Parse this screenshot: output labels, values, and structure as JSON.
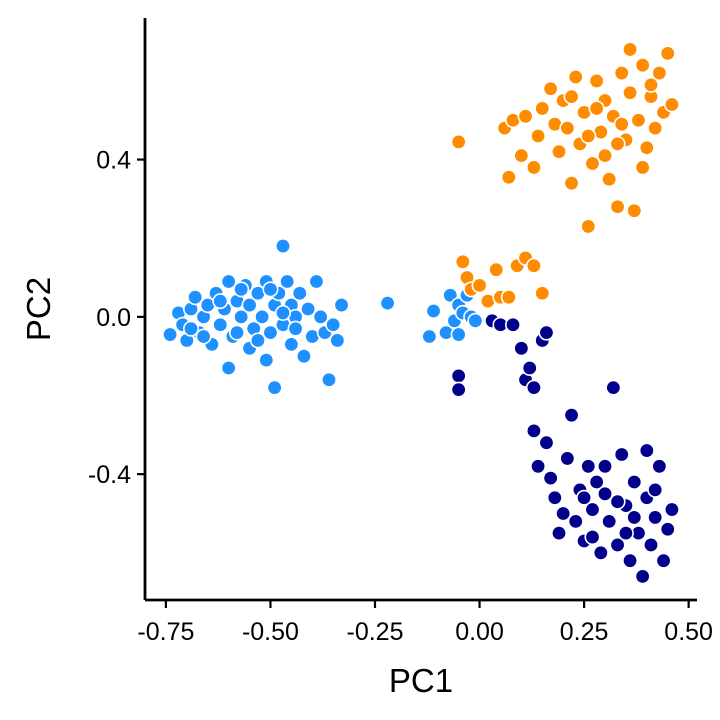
{
  "chart_data": {
    "type": "scatter",
    "title": "",
    "xlabel": "PC1",
    "ylabel": "PC2",
    "xlim": [
      -0.8,
      0.52
    ],
    "ylim": [
      -0.72,
      0.76
    ],
    "xticks": [
      -0.75,
      -0.5,
      -0.25,
      0.0,
      0.25,
      0.5
    ],
    "xtick_labels": [
      "-0.75",
      "-0.50",
      "-0.25",
      "0.00",
      "0.25",
      "0.50"
    ],
    "yticks": [
      -0.4,
      0.0,
      0.4
    ],
    "ytick_labels": [
      "-0.4",
      "0.0",
      "0.4"
    ],
    "grid": false,
    "legend": "none",
    "series": [
      {
        "color": "#1E90FF",
        "points": [
          [
            -0.74,
            -0.045
          ],
          [
            -0.72,
            0.01
          ],
          [
            -0.71,
            -0.02
          ],
          [
            -0.7,
            -0.06
          ],
          [
            -0.69,
            0.02
          ],
          [
            -0.68,
            0.05
          ],
          [
            -0.67,
            -0.04
          ],
          [
            -0.66,
            0.0
          ],
          [
            -0.65,
            0.03
          ],
          [
            -0.64,
            -0.07
          ],
          [
            -0.63,
            0.06
          ],
          [
            -0.62,
            -0.02
          ],
          [
            -0.61,
            0.02
          ],
          [
            -0.6,
            0.09
          ],
          [
            -0.6,
            -0.13
          ],
          [
            -0.59,
            -0.05
          ],
          [
            -0.58,
            0.04
          ],
          [
            -0.57,
            0.0
          ],
          [
            -0.56,
            0.08
          ],
          [
            -0.55,
            -0.08
          ],
          [
            -0.55,
            0.03
          ],
          [
            -0.54,
            -0.03
          ],
          [
            -0.53,
            0.06
          ],
          [
            -0.52,
            0.0
          ],
          [
            -0.51,
            -0.11
          ],
          [
            -0.51,
            0.09
          ],
          [
            -0.5,
            -0.04
          ],
          [
            -0.49,
            0.03
          ],
          [
            -0.49,
            -0.18
          ],
          [
            -0.48,
            0.06
          ],
          [
            -0.47,
            -0.02
          ],
          [
            -0.47,
            0.18
          ],
          [
            -0.46,
            0.09
          ],
          [
            -0.45,
            -0.07
          ],
          [
            -0.45,
            0.03
          ],
          [
            -0.44,
            0.0
          ],
          [
            -0.43,
            0.06
          ],
          [
            -0.42,
            -0.1
          ],
          [
            -0.41,
            0.02
          ],
          [
            -0.4,
            -0.05
          ],
          [
            -0.39,
            0.09
          ],
          [
            -0.38,
            0.0
          ],
          [
            -0.37,
            -0.04
          ],
          [
            -0.36,
            -0.16
          ],
          [
            -0.35,
            -0.02
          ],
          [
            -0.34,
            -0.06
          ],
          [
            -0.33,
            0.03
          ],
          [
            -0.58,
            -0.04
          ],
          [
            -0.62,
            0.04
          ],
          [
            -0.53,
            -0.06
          ],
          [
            -0.5,
            0.07
          ],
          [
            -0.44,
            -0.03
          ],
          [
            -0.66,
            -0.05
          ],
          [
            -0.57,
            0.07
          ],
          [
            -0.69,
            -0.03
          ],
          [
            -0.47,
            0.01
          ],
          [
            -0.22,
            0.035
          ],
          [
            -0.12,
            -0.05
          ],
          [
            -0.11,
            0.015
          ],
          [
            -0.08,
            -0.04
          ],
          [
            -0.07,
            0.055
          ],
          [
            -0.06,
            -0.01
          ],
          [
            -0.05,
            0.03
          ],
          [
            -0.05,
            -0.045
          ],
          [
            -0.04,
            0.01
          ],
          [
            -0.03,
            0.055
          ],
          [
            -0.02,
            0.0
          ],
          [
            -0.01,
            -0.01
          ]
        ]
      },
      {
        "color": "#FF8C00",
        "points": [
          [
            -0.05,
            0.445
          ],
          [
            -0.04,
            0.14
          ],
          [
            -0.03,
            0.1
          ],
          [
            -0.02,
            0.07
          ],
          [
            0.0,
            0.08
          ],
          [
            0.02,
            0.04
          ],
          [
            0.04,
            0.12
          ],
          [
            0.05,
            0.05
          ],
          [
            0.07,
            0.05
          ],
          [
            0.09,
            0.13
          ],
          [
            0.11,
            0.15
          ],
          [
            0.13,
            0.13
          ],
          [
            0.15,
            0.06
          ],
          [
            0.07,
            0.355
          ],
          [
            0.06,
            0.48
          ],
          [
            0.08,
            0.5
          ],
          [
            0.1,
            0.41
          ],
          [
            0.11,
            0.51
          ],
          [
            0.13,
            0.38
          ],
          [
            0.14,
            0.46
          ],
          [
            0.15,
            0.53
          ],
          [
            0.17,
            0.58
          ],
          [
            0.18,
            0.49
          ],
          [
            0.19,
            0.42
          ],
          [
            0.2,
            0.55
          ],
          [
            0.21,
            0.48
          ],
          [
            0.22,
            0.34
          ],
          [
            0.23,
            0.61
          ],
          [
            0.24,
            0.44
          ],
          [
            0.25,
            0.52
          ],
          [
            0.26,
            0.23
          ],
          [
            0.27,
            0.39
          ],
          [
            0.28,
            0.6
          ],
          [
            0.29,
            0.47
          ],
          [
            0.3,
            0.55
          ],
          [
            0.31,
            0.35
          ],
          [
            0.32,
            0.51
          ],
          [
            0.33,
            0.28
          ],
          [
            0.34,
            0.62
          ],
          [
            0.35,
            0.45
          ],
          [
            0.36,
            0.57
          ],
          [
            0.37,
            0.27
          ],
          [
            0.38,
            0.5
          ],
          [
            0.39,
            0.64
          ],
          [
            0.4,
            0.43
          ],
          [
            0.41,
            0.56
          ],
          [
            0.42,
            0.48
          ],
          [
            0.43,
            0.62
          ],
          [
            0.44,
            0.52
          ],
          [
            0.45,
            0.67
          ],
          [
            0.46,
            0.54
          ],
          [
            0.36,
            0.68
          ],
          [
            0.3,
            0.41
          ],
          [
            0.26,
            0.46
          ],
          [
            0.33,
            0.44
          ],
          [
            0.39,
            0.38
          ],
          [
            0.22,
            0.56
          ],
          [
            0.28,
            0.53
          ],
          [
            0.41,
            0.59
          ],
          [
            0.34,
            0.49
          ]
        ]
      },
      {
        "color": "#00008B",
        "points": [
          [
            -0.05,
            -0.15
          ],
          [
            -0.05,
            -0.185
          ],
          [
            0.03,
            -0.01
          ],
          [
            0.05,
            -0.02
          ],
          [
            0.08,
            -0.02
          ],
          [
            0.1,
            -0.08
          ],
          [
            0.11,
            -0.16
          ],
          [
            0.12,
            -0.13
          ],
          [
            0.13,
            -0.18
          ],
          [
            0.15,
            -0.06
          ],
          [
            0.16,
            -0.04
          ],
          [
            0.13,
            -0.29
          ],
          [
            0.14,
            -0.38
          ],
          [
            0.16,
            -0.32
          ],
          [
            0.17,
            -0.41
          ],
          [
            0.18,
            -0.46
          ],
          [
            0.19,
            -0.55
          ],
          [
            0.2,
            -0.5
          ],
          [
            0.21,
            -0.36
          ],
          [
            0.22,
            -0.25
          ],
          [
            0.23,
            -0.52
          ],
          [
            0.24,
            -0.44
          ],
          [
            0.25,
            -0.57
          ],
          [
            0.26,
            -0.38
          ],
          [
            0.27,
            -0.49
          ],
          [
            0.28,
            -0.42
          ],
          [
            0.29,
            -0.6
          ],
          [
            0.3,
            -0.45
          ],
          [
            0.31,
            -0.52
          ],
          [
            0.32,
            -0.18
          ],
          [
            0.33,
            -0.58
          ],
          [
            0.34,
            -0.35
          ],
          [
            0.35,
            -0.48
          ],
          [
            0.36,
            -0.62
          ],
          [
            0.37,
            -0.42
          ],
          [
            0.38,
            -0.55
          ],
          [
            0.39,
            -0.66
          ],
          [
            0.4,
            -0.46
          ],
          [
            0.41,
            -0.58
          ],
          [
            0.42,
            -0.51
          ],
          [
            0.43,
            -0.38
          ],
          [
            0.44,
            -0.62
          ],
          [
            0.45,
            -0.54
          ],
          [
            0.46,
            -0.49
          ],
          [
            0.4,
            -0.34
          ],
          [
            0.35,
            -0.55
          ],
          [
            0.3,
            -0.38
          ],
          [
            0.27,
            -0.56
          ],
          [
            0.33,
            -0.47
          ],
          [
            0.42,
            -0.44
          ],
          [
            0.25,
            -0.46
          ],
          [
            0.37,
            -0.51
          ]
        ]
      }
    ]
  }
}
